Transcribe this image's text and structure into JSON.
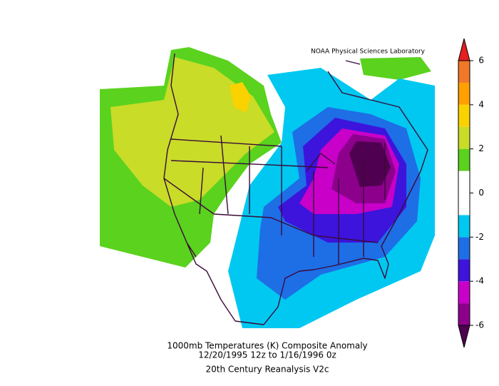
{
  "credit": "NOAA Physical Sciences Laboratory",
  "caption": [
    "1000mb Temperatures (K)   Composite Anomaly",
    "12/20/1995 12z  to 1/16/1996 0z",
    "20th Century Reanalysis V2c"
  ],
  "colorbar": {
    "lim": [
      -6,
      6
    ],
    "ticks": [
      6,
      4,
      2,
      0,
      -2,
      -4,
      -6
    ],
    "levels": [
      -6,
      -5,
      -4,
      -3,
      -2,
      -1,
      1,
      2,
      3,
      4,
      5,
      6
    ],
    "colors": [
      "#500050",
      "#8c008c",
      "#c800c8",
      "#3c14dc",
      "#1e6ee6",
      "#00c8f0",
      "#ffffff",
      "#5ad21e",
      "#c8dc28",
      "#fad200",
      "#ffa000",
      "#f07828",
      "#e61e1e"
    ]
  }
}
